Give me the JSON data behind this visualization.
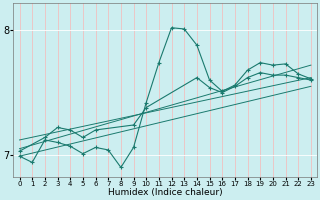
{
  "xlabel": "Humidex (Indice chaleur)",
  "background_color": "#cceef0",
  "grid_color": "#ffffff",
  "line_color": "#1a7a6e",
  "xlim": [
    -0.5,
    23.5
  ],
  "ylim": [
    6.82,
    8.22
  ],
  "yticks": [
    7,
    8
  ],
  "xticks": [
    0,
    1,
    2,
    3,
    4,
    5,
    6,
    7,
    8,
    9,
    10,
    11,
    12,
    13,
    14,
    15,
    16,
    17,
    18,
    19,
    20,
    21,
    22,
    23
  ],
  "main_x": [
    0,
    1,
    2,
    3,
    4,
    5,
    6,
    7,
    8,
    9,
    10,
    11,
    12,
    13,
    14,
    15,
    16,
    17,
    18,
    19,
    20,
    21,
    22,
    23
  ],
  "main_y": [
    6.99,
    6.94,
    7.12,
    7.1,
    7.07,
    7.01,
    7.06,
    7.04,
    6.9,
    7.06,
    7.42,
    7.74,
    8.02,
    8.01,
    7.88,
    7.6,
    7.51,
    7.56,
    7.68,
    7.74,
    7.72,
    7.73,
    7.65,
    7.61
  ],
  "line2_x": [
    0,
    2,
    3,
    4,
    5,
    6,
    9,
    10,
    14,
    15,
    16,
    17,
    18,
    19,
    20,
    21,
    22,
    23
  ],
  "line2_y": [
    7.03,
    7.14,
    7.22,
    7.2,
    7.14,
    7.2,
    7.24,
    7.38,
    7.62,
    7.54,
    7.5,
    7.55,
    7.62,
    7.66,
    7.64,
    7.64,
    7.62,
    7.6
  ],
  "trend1_x": [
    0,
    23
  ],
  "trend1_y": [
    7.05,
    7.72
  ],
  "trend2_x": [
    0,
    23
  ],
  "trend2_y": [
    7.12,
    7.62
  ],
  "trend3_x": [
    0,
    23
  ],
  "trend3_y": [
    6.99,
    7.55
  ]
}
